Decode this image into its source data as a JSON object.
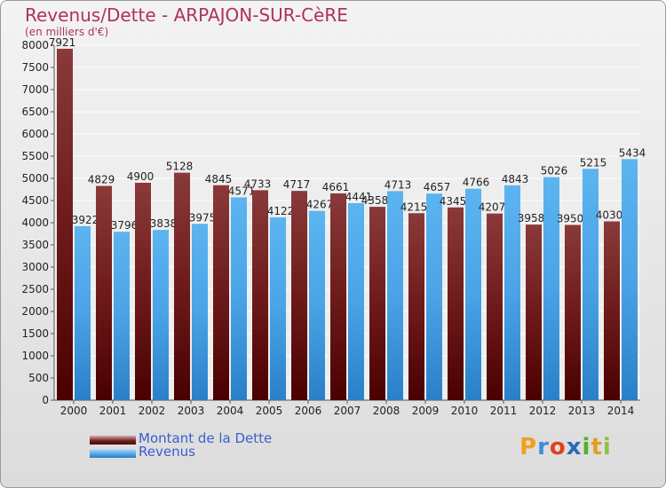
{
  "header": {
    "title": "Revenus/Dette - ARPAJON-SUR-CèRE",
    "subtitle": "(en milliers d'€)"
  },
  "legend": {
    "items": [
      {
        "label": "Montant de la Dette",
        "color": "#6e1a1a"
      },
      {
        "label": "Revenus",
        "color": "#4aa3e6"
      }
    ]
  },
  "logo": {
    "letters": [
      "P",
      "r",
      "o",
      "x",
      "i",
      "t",
      "i"
    ],
    "colors": [
      "#f0a020",
      "#3a8fd8",
      "#e04020",
      "#2a6ab8",
      "#50b030",
      "#e0a020",
      "#8bc34a"
    ]
  },
  "chart_data": {
    "type": "bar",
    "categories": [
      "2000",
      "2001",
      "2002",
      "2003",
      "2004",
      "2005",
      "2006",
      "2007",
      "2008",
      "2009",
      "2010",
      "2011",
      "2012",
      "2013",
      "2014"
    ],
    "series": [
      {
        "name": "Montant de la Dette",
        "color": "#6e1a1a",
        "values": [
          7921,
          4829,
          4900,
          5128,
          4845,
          4733,
          4717,
          4661,
          4358,
          4215,
          4345,
          4207,
          3958,
          3950,
          4030
        ],
        "labels": [
          "7921",
          "4829",
          "4900",
          "5128",
          "4845",
          "4733",
          "4717",
          "4661",
          "4358",
          "4215",
          "4345",
          "4207",
          "3958",
          "3950",
          "4030"
        ]
      },
      {
        "name": "Revenus",
        "color": "#4aa3e6",
        "values": [
          3922,
          3796,
          3838,
          3975,
          4571,
          4122,
          4267,
          4441,
          4713,
          4657,
          4766,
          4843,
          5026,
          5215,
          5434
        ],
        "labels": [
          "3922",
          "3796",
          "3838",
          "3975",
          "4571",
          "4122",
          "4267",
          "4441",
          "4713",
          "4657",
          "4766",
          "4843",
          "5026",
          "5215",
          "5434"
        ]
      }
    ],
    "ylim": [
      0,
      8000
    ],
    "yticks": [
      0,
      500,
      1000,
      1500,
      2000,
      2500,
      3000,
      3500,
      4000,
      4500,
      5000,
      5500,
      6000,
      6500,
      7000,
      7500,
      8000
    ],
    "grid": true,
    "legend_position": "bottom-left"
  }
}
